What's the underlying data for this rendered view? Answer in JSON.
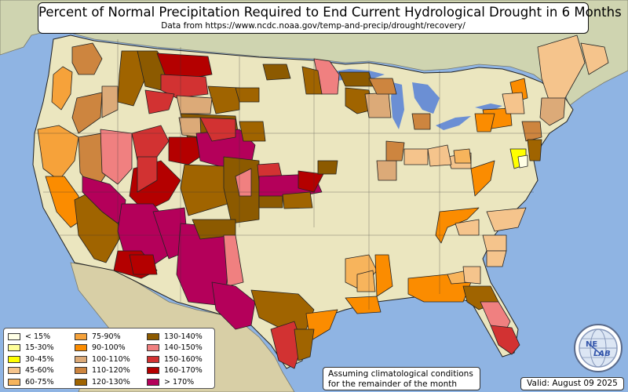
{
  "header": {
    "title": "Percent of Normal Precipitation Required to End Current Hydrological Drought in 6 Months",
    "subtitle": "Data from https://www.ncdc.noaa.gov/temp-and-precip/drought/recovery/"
  },
  "legend": {
    "columns": [
      [
        {
          "label": "< 15%",
          "color": "#ffffe6"
        },
        {
          "label": "15-30%",
          "color": "#ffff99"
        },
        {
          "label": "30-45%",
          "color": "#ffff00"
        },
        {
          "label": "45-60%",
          "color": "#f5c48c"
        },
        {
          "label": "60-75%",
          "color": "#f7b45c"
        }
      ],
      [
        {
          "label": "75-90%",
          "color": "#f6a23a"
        },
        {
          "label": "90-100%",
          "color": "#fb8c00"
        },
        {
          "label": "100-110%",
          "color": "#dcaa78"
        },
        {
          "label": "110-120%",
          "color": "#cd853f"
        },
        {
          "label": "120-130%",
          "color": "#a06400"
        }
      ],
      [
        {
          "label": "130-140%",
          "color": "#8c5a00"
        },
        {
          "label": "140-150%",
          "color": "#f08080"
        },
        {
          "label": "150-160%",
          "color": "#d23232"
        },
        {
          "label": "160-170%",
          "color": "#b40000"
        },
        {
          "label": "> 170%",
          "color": "#b4005a"
        }
      ]
    ]
  },
  "note": {
    "line1": "Assuming climatological conditions",
    "line2": "for the remainder of the month"
  },
  "valid": "Valid: August 09 2025",
  "logo": {
    "text_top": "NE",
    "text_bottom": "LAB",
    "icon": "nexlab-globe-icon"
  },
  "colors": {
    "ocean": "#8fb4e3",
    "lake": "#6b8fd4",
    "land_usa": "#ebe6bf",
    "land_canada": "#cfd4b0",
    "land_mexico": "#d8cfa6",
    "border": "#222222"
  }
}
